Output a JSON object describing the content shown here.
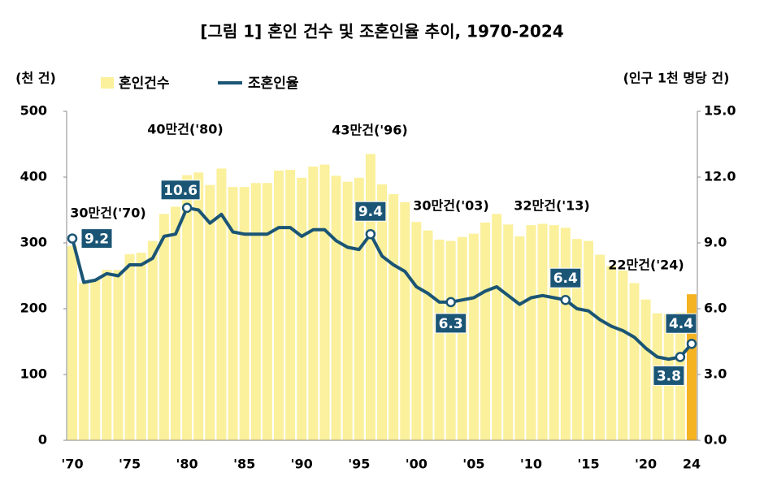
{
  "chart_data": {
    "type": "bar-line",
    "title": "[그림 1] 혼인 건수 및 조혼인율 추이, 1970-2024",
    "y_label": "(천 건)",
    "y2_label": "(인구 1천 명당 건)",
    "categories": [
      "'70",
      null,
      null,
      null,
      null,
      "'75",
      null,
      null,
      null,
      null,
      "'80",
      null,
      null,
      null,
      null,
      "'85",
      null,
      null,
      null,
      null,
      "'90",
      null,
      null,
      null,
      null,
      "'95",
      null,
      null,
      null,
      null,
      "'00",
      null,
      null,
      null,
      null,
      "'05",
      null,
      null,
      null,
      null,
      "'10",
      null,
      null,
      null,
      null,
      "'15",
      null,
      null,
      null,
      null,
      "'20",
      null,
      null,
      null,
      "24"
    ],
    "series": [
      {
        "name": "혼인건수",
        "kind": "bar",
        "color": "#fbf09c",
        "colors": [
          "#fbf09c",
          "#fbf09c",
          "#fbf09c",
          "#fbf09c",
          "#fbf09c",
          "#fbf09c",
          "#fbf09c",
          "#fbf09c",
          "#fbf09c",
          "#fbf09c",
          "#fbf09c",
          "#fbf09c",
          "#fbf09c",
          "#fbf09c",
          "#fbf09c",
          "#fbf09c",
          "#fbf09c",
          "#fbf09c",
          "#fbf09c",
          "#fbf09c",
          "#fbf09c",
          "#fbf09c",
          "#fbf09c",
          "#fbf09c",
          "#fbf09c",
          "#fbf09c",
          "#fbf09c",
          "#fbf09c",
          "#fbf09c",
          "#fbf09c",
          "#fbf09c",
          "#fbf09c",
          "#fbf09c",
          "#fbf09c",
          "#fbf09c",
          "#fbf09c",
          "#fbf09c",
          "#fbf09c",
          "#fbf09c",
          "#fbf09c",
          "#fbf09c",
          "#fbf09c",
          "#fbf09c",
          "#fbf09c",
          "#fbf09c",
          "#fbf09c",
          "#fbf09c",
          "#fbf09c",
          "#fbf09c",
          "#fbf09c",
          "#fbf09c",
          "#fbf09c",
          "#fbf09c",
          "#fbf09c",
          "#f5b321"
        ],
        "values": [
          295,
          239,
          244,
          259,
          259,
          283,
          285,
          303,
          344,
          355,
          403,
          407,
          388,
          413,
          385,
          385,
          391,
          391,
          410,
          411,
          399,
          416,
          419,
          402,
          393,
          399,
          435,
          389,
          374,
          362,
          332,
          319,
          305,
          303,
          309,
          314,
          331,
          344,
          328,
          310,
          327,
          329,
          327,
          323,
          306,
          303,
          282,
          265,
          258,
          239,
          214,
          193,
          192,
          194,
          222
        ]
      },
      {
        "name": "조혼인율",
        "kind": "line",
        "axis": "y2",
        "color": "#1b5575",
        "values": [
          9.2,
          7.2,
          7.3,
          7.6,
          7.5,
          8.0,
          8.0,
          8.3,
          9.3,
          9.4,
          10.6,
          10.5,
          9.9,
          10.3,
          9.5,
          9.4,
          9.4,
          9.4,
          9.7,
          9.7,
          9.3,
          9.6,
          9.6,
          9.1,
          8.8,
          8.7,
          9.4,
          8.4,
          8.0,
          7.7,
          7.0,
          6.7,
          6.3,
          6.3,
          6.4,
          6.5,
          6.8,
          7.0,
          6.6,
          6.2,
          6.5,
          6.6,
          6.5,
          6.4,
          6.0,
          5.9,
          5.5,
          5.2,
          5.0,
          4.7,
          4.2,
          3.8,
          3.7,
          3.8,
          4.4
        ],
        "value_labels": [
          "9.2",
          null,
          null,
          null,
          null,
          null,
          null,
          null,
          null,
          null,
          "10.6",
          null,
          null,
          null,
          null,
          null,
          null,
          null,
          null,
          null,
          null,
          null,
          null,
          null,
          null,
          null,
          "9.4",
          null,
          null,
          null,
          null,
          null,
          null,
          "6.3",
          null,
          null,
          null,
          null,
          null,
          null,
          null,
          null,
          null,
          "6.4",
          null,
          null,
          null,
          null,
          null,
          null,
          null,
          null,
          null,
          "3.8",
          "4.4"
        ]
      }
    ],
    "annotations": [
      "30만건('70)",
      "40만건('80)",
      "43만건('96)",
      "30만건('03)",
      "32만건('13)",
      "22만건('24)"
    ],
    "ylim": [
      0,
      500
    ],
    "yticks": [
      0,
      100,
      200,
      300,
      400,
      500
    ],
    "y2lim": [
      0,
      15
    ],
    "y2ticks": [
      {
        "value": 0,
        "label": "0.0"
      },
      {
        "value": 3,
        "label": "3.0"
      },
      {
        "value": 6,
        "label": "6.0"
      },
      {
        "value": 9,
        "label": "9.0"
      },
      {
        "value": 12,
        "label": "12.0"
      },
      {
        "value": 15,
        "label": "15.0"
      }
    ],
    "legend": "top"
  }
}
